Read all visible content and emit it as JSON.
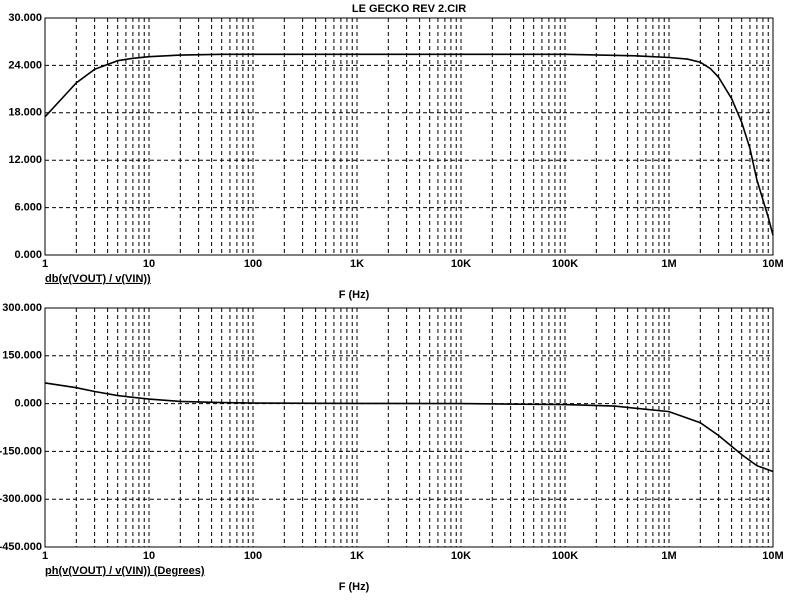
{
  "chart_data": [
    {
      "type": "line",
      "title": "LE GECKO REV 2.CIR",
      "xlabel": "F (Hz)",
      "ylabel": "db(v(VOUT) / v(VIN))",
      "xscale": "log",
      "grid": true,
      "color": "#000000",
      "xlim": [
        1,
        10000000
      ],
      "xticks": [
        1,
        10,
        100,
        {
          "value": 1000,
          "label": "1K"
        },
        {
          "value": 10000,
          "label": "10K"
        },
        {
          "value": 100000,
          "label": "100K"
        },
        {
          "value": 1000000,
          "label": "1M"
        },
        {
          "value": 10000000,
          "label": "10M"
        }
      ],
      "ylim": [
        0,
        30
      ],
      "yticks": [
        {
          "value": 0,
          "label": "0.000"
        },
        {
          "value": 6,
          "label": "6.000"
        },
        {
          "value": 12,
          "label": "12.000"
        },
        {
          "value": 18,
          "label": "18.000"
        },
        {
          "value": 24,
          "label": "24.000"
        },
        {
          "value": 30,
          "label": "30.000"
        }
      ],
      "x": [
        1,
        1.5,
        2,
        3,
        5,
        7,
        10,
        20,
        50,
        100,
        1000,
        10000,
        100000,
        500000,
        1000000,
        1500000,
        2000000,
        2500000,
        3000000,
        4000000,
        5000000,
        6000000,
        7000000,
        8000000,
        9000000,
        10000000
      ],
      "values": [
        17.5,
        20,
        21.8,
        23.5,
        24.6,
        24.9,
        25.1,
        25.3,
        25.4,
        25.4,
        25.4,
        25.4,
        25.4,
        25.2,
        25.0,
        24.8,
        24.4,
        23.6,
        22.5,
        19.8,
        16.8,
        13.5,
        9.5,
        7,
        4.8,
        2.5
      ]
    },
    {
      "type": "line",
      "xlabel": "F (Hz)",
      "ylabel": "ph(v(VOUT) / v(VIN)) (Degrees)",
      "xscale": "log",
      "grid": true,
      "color": "#000000",
      "xlim": [
        1,
        10000000
      ],
      "xticks": [
        1,
        10,
        100,
        {
          "value": 1000,
          "label": "1K"
        },
        {
          "value": 10000,
          "label": "10K"
        },
        {
          "value": 100000,
          "label": "100K"
        },
        {
          "value": 1000000,
          "label": "1M"
        },
        {
          "value": 10000000,
          "label": "10M"
        }
      ],
      "ylim": [
        -450,
        300
      ],
      "yticks": [
        {
          "value": -450,
          "label": "-450.000"
        },
        {
          "value": -300,
          "label": "-300.000"
        },
        {
          "value": -150,
          "label": "-150.000"
        },
        {
          "value": 0,
          "label": "0.000"
        },
        {
          "value": 150,
          "label": "150.000"
        },
        {
          "value": 300,
          "label": "300.000"
        }
      ],
      "x": [
        1,
        2,
        3,
        5,
        10,
        20,
        50,
        100,
        1000,
        10000,
        100000,
        300000,
        1000000,
        2000000,
        3000000,
        5000000,
        7000000,
        10000000
      ],
      "values": [
        65,
        50,
        38,
        25,
        14,
        7,
        3,
        1.5,
        0.5,
        0,
        -3,
        -8,
        -25,
        -60,
        -100,
        -160,
        -195,
        -213
      ]
    }
  ]
}
